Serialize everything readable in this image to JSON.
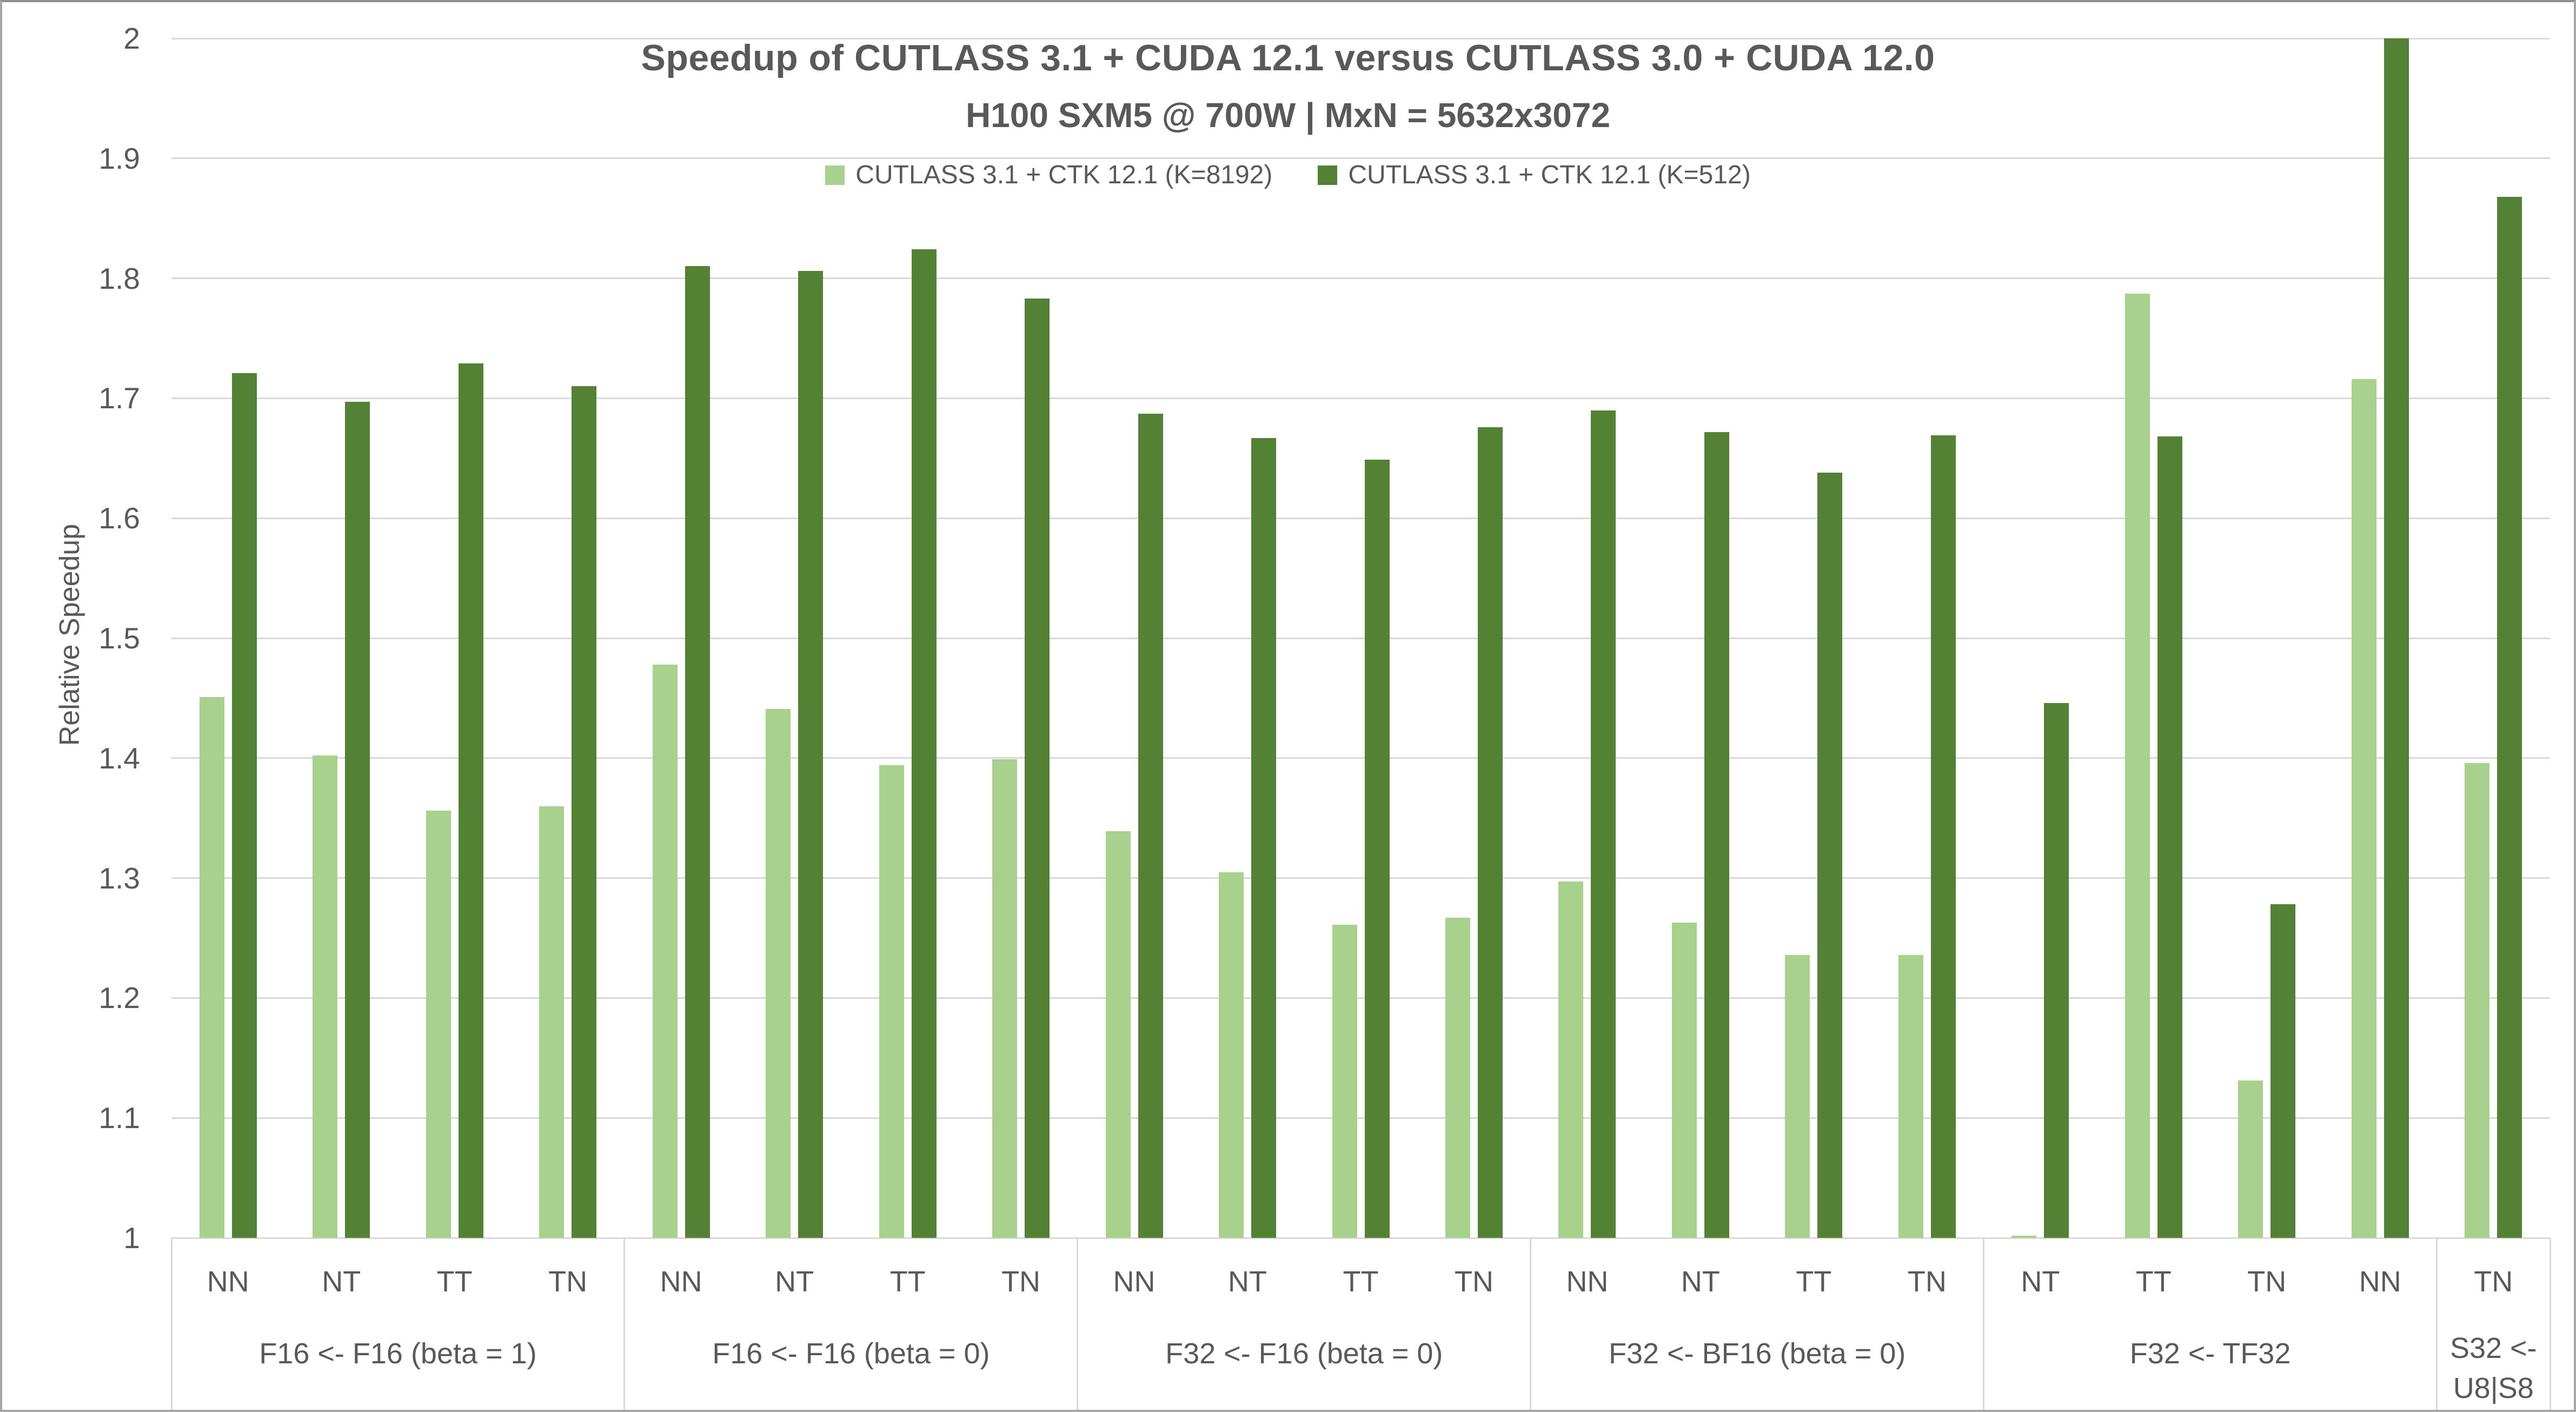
{
  "title": {
    "line1": "Speedup of CUTLASS 3.1 + CUDA 12.1 versus CUTLASS 3.0 + CUDA 12.0",
    "line2": "H100 SXM5 @ 700W | MxN = 5632x3072"
  },
  "y_axis": {
    "title": "Relative Speedup",
    "tick_labels": [
      "2",
      "1.9",
      "1.8",
      "1.7",
      "1.6",
      "1.5",
      "1.4",
      "1.3",
      "1.2",
      "1.1",
      "1"
    ]
  },
  "colors": {
    "series_k8192": "#A9D18E",
    "series_k512": "#548235",
    "gridline": "#D9D9D9",
    "text": "#595959",
    "frame": "#A6A6A6"
  },
  "chart_data": {
    "type": "bar",
    "title": "Speedup of CUTLASS 3.1 + CUDA 12.1 versus CUTLASS 3.0 + CUDA 12.0",
    "subtitle": "H100 SXM5 @ 700W | MxN = 5632x3072",
    "ylabel": "Relative Speedup",
    "ylim": [
      1,
      2
    ],
    "ytick_step": 0.1,
    "grid": "horizontal",
    "legend_position": "top-center",
    "series": [
      {
        "name": "CUTLASS 3.1 + CTK 12.1 (K=8192)",
        "color": "#A9D18E"
      },
      {
        "name": "CUTLASS 3.1 + CTK 12.1 (K=512)",
        "color": "#548235"
      }
    ],
    "groups": [
      {
        "label": "F16 <- F16 (beta = 1)",
        "categories": [
          "NN",
          "NT",
          "TT",
          "TN"
        ],
        "k8192": [
          1.451,
          1.402,
          1.356,
          1.36
        ],
        "k512": [
          1.721,
          1.697,
          1.729,
          1.71
        ]
      },
      {
        "label": "F16 <- F16 (beta = 0)",
        "categories": [
          "NN",
          "NT",
          "TT",
          "TN"
        ],
        "k8192": [
          1.478,
          1.441,
          1.394,
          1.399
        ],
        "k512": [
          1.81,
          1.806,
          1.824,
          1.783
        ]
      },
      {
        "label": "F32 <- F16 (beta = 0)",
        "categories": [
          "NN",
          "NT",
          "TT",
          "TN"
        ],
        "k8192": [
          1.339,
          1.305,
          1.261,
          1.267
        ],
        "k512": [
          1.687,
          1.667,
          1.649,
          1.676
        ]
      },
      {
        "label": "F32 <- BF16 (beta = 0)",
        "categories": [
          "NN",
          "NT",
          "TT",
          "TN"
        ],
        "k8192": [
          1.297,
          1.263,
          1.236,
          1.236
        ],
        "k512": [
          1.69,
          1.672,
          1.638,
          1.669
        ]
      },
      {
        "label": "F32 <- TF32",
        "categories": [
          "NT",
          "TT",
          "TN",
          "NN"
        ],
        "k8192": [
          1.002,
          1.787,
          1.131,
          1.716
        ],
        "k512": [
          1.446,
          1.668,
          1.278,
          2.0
        ]
      },
      {
        "label": "S32 <- U8|S8",
        "label_lines": [
          "S32 <-",
          "U8|S8"
        ],
        "categories": [
          "TN"
        ],
        "k8192": [
          1.396
        ],
        "k512": [
          1.868
        ]
      }
    ]
  }
}
